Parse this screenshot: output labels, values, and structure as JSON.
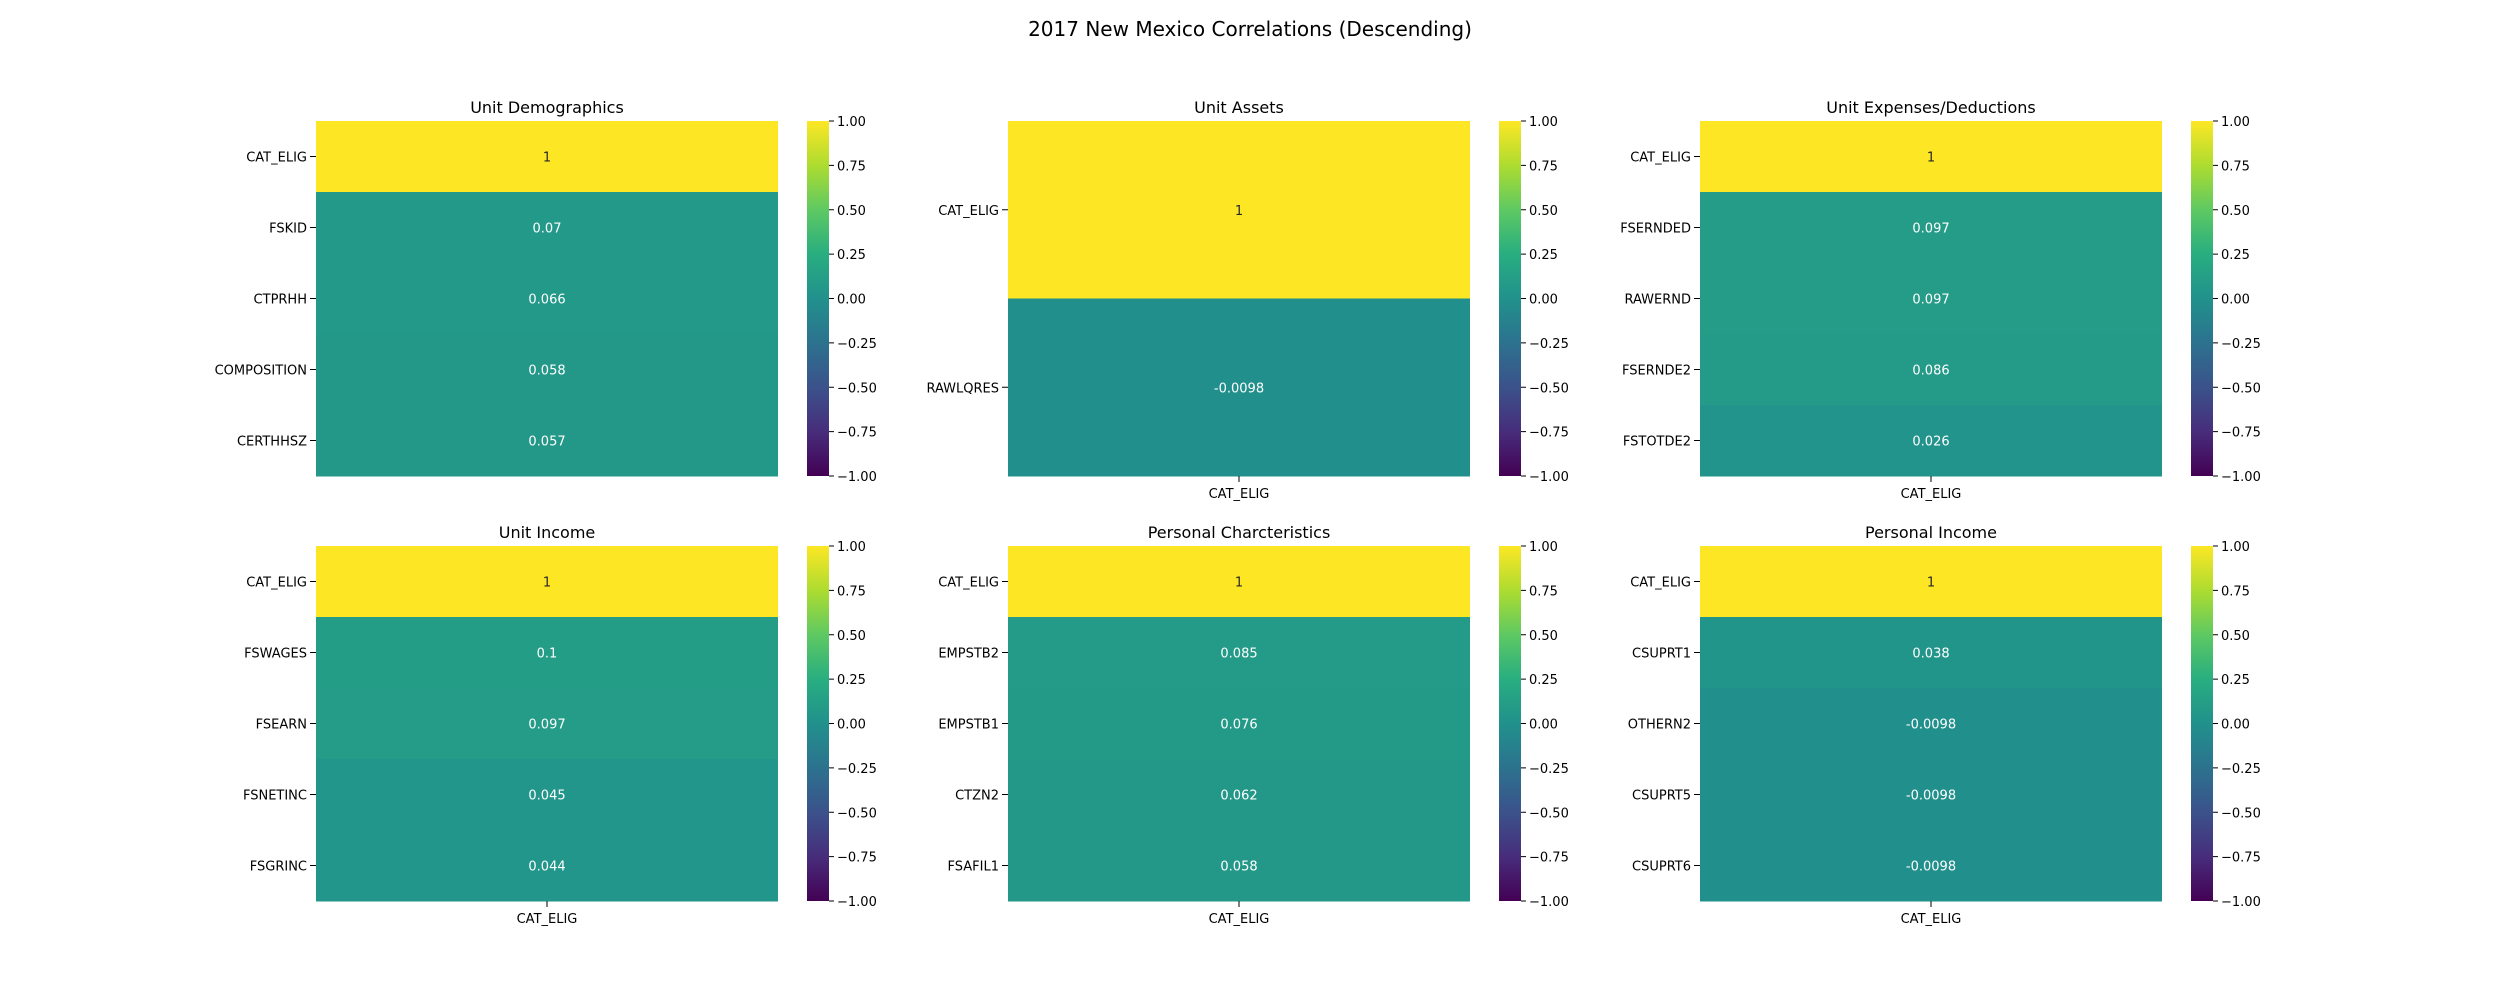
{
  "figure_title": "2017 New Mexico Correlations (Descending)",
  "chart_data": [
    {
      "type": "heatmap",
      "title": "Unit Demographics",
      "rows": [
        "CAT_ELIG",
        "FSKID",
        "CTPRHH",
        "COMPOSITION",
        "CERTHHSZ"
      ],
      "columns": [],
      "values": [
        1,
        0.07,
        0.066,
        0.058,
        0.057
      ],
      "labels": [
        "1",
        "0.07",
        "0.066",
        "0.058",
        "0.057"
      ],
      "vmin": -1,
      "vmax": 1,
      "colorbar_ticks": [
        "1.00",
        "0.75",
        "0.50",
        "0.25",
        "0.00",
        "−0.25",
        "−0.50",
        "−0.75",
        "−1.00"
      ]
    },
    {
      "type": "heatmap",
      "title": "Unit Assets",
      "rows": [
        "CAT_ELIG",
        "RAWLQRES"
      ],
      "columns": [
        "CAT_ELIG"
      ],
      "values": [
        1,
        -0.0098
      ],
      "labels": [
        "1",
        "-0.0098"
      ],
      "vmin": -1,
      "vmax": 1,
      "colorbar_ticks": [
        "1.00",
        "0.75",
        "0.50",
        "0.25",
        "0.00",
        "−0.25",
        "−0.50",
        "−0.75",
        "−1.00"
      ]
    },
    {
      "type": "heatmap",
      "title": "Unit Expenses/Deductions",
      "rows": [
        "CAT_ELIG",
        "FSERNDED",
        "RAWERND",
        "FSERNDE2",
        "FSTOTDE2"
      ],
      "columns": [
        "CAT_ELIG"
      ],
      "values": [
        1,
        0.097,
        0.097,
        0.086,
        0.026
      ],
      "labels": [
        "1",
        "0.097",
        "0.097",
        "0.086",
        "0.026"
      ],
      "vmin": -1,
      "vmax": 1,
      "colorbar_ticks": [
        "1.00",
        "0.75",
        "0.50",
        "0.25",
        "0.00",
        "−0.25",
        "−0.50",
        "−0.75",
        "−1.00"
      ]
    },
    {
      "type": "heatmap",
      "title": "Unit Income",
      "rows": [
        "CAT_ELIG",
        "FSWAGES",
        "FSEARN",
        "FSNETINC",
        "FSGRINC"
      ],
      "columns": [
        "CAT_ELIG"
      ],
      "values": [
        1,
        0.1,
        0.097,
        0.045,
        0.044
      ],
      "labels": [
        "1",
        "0.1",
        "0.097",
        "0.045",
        "0.044"
      ],
      "vmin": -1,
      "vmax": 1,
      "colorbar_ticks": [
        "1.00",
        "0.75",
        "0.50",
        "0.25",
        "0.00",
        "−0.25",
        "−0.50",
        "−0.75",
        "−1.00"
      ]
    },
    {
      "type": "heatmap",
      "title": "Personal Charcteristics",
      "rows": [
        "CAT_ELIG",
        "EMPSTB2",
        "EMPSTB1",
        "CTZN2",
        "FSAFIL1"
      ],
      "columns": [
        "CAT_ELIG"
      ],
      "values": [
        1,
        0.085,
        0.076,
        0.062,
        0.058
      ],
      "labels": [
        "1",
        "0.085",
        "0.076",
        "0.062",
        "0.058"
      ],
      "vmin": -1,
      "vmax": 1,
      "colorbar_ticks": [
        "1.00",
        "0.75",
        "0.50",
        "0.25",
        "0.00",
        "−0.25",
        "−0.50",
        "−0.75",
        "−1.00"
      ]
    },
    {
      "type": "heatmap",
      "title": "Personal Income",
      "rows": [
        "CAT_ELIG",
        "CSUPRT1",
        "OTHERN2",
        "CSUPRT5",
        "CSUPRT6"
      ],
      "columns": [
        "CAT_ELIG"
      ],
      "values": [
        1,
        0.038,
        -0.0098,
        -0.0098,
        -0.0098
      ],
      "labels": [
        "1",
        "0.038",
        "-0.0098",
        "-0.0098",
        "-0.0098"
      ],
      "vmin": -1,
      "vmax": 1,
      "colorbar_ticks": [
        "1.00",
        "0.75",
        "0.50",
        "0.25",
        "0.00",
        "−0.25",
        "−0.50",
        "−0.75",
        "−1.00"
      ]
    }
  ]
}
